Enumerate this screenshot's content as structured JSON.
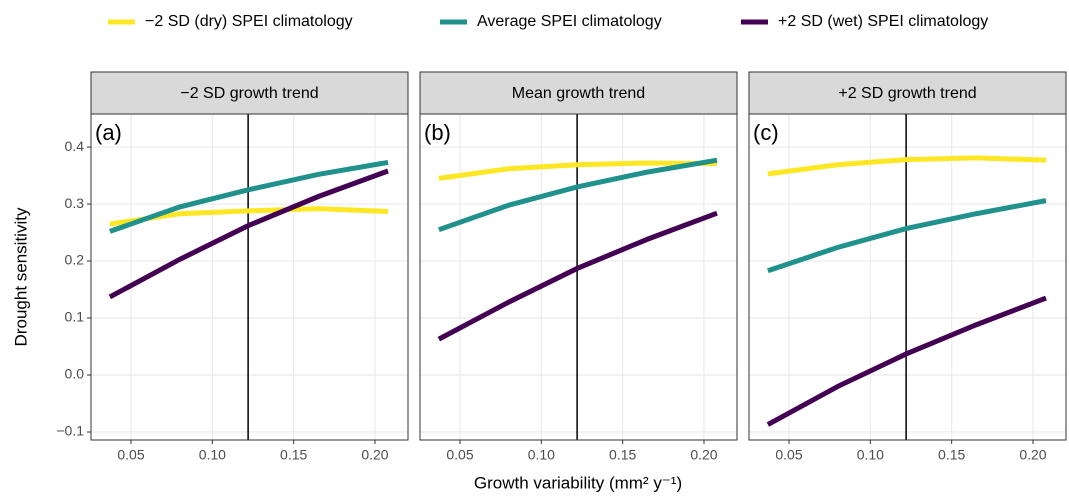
{
  "chart_data": {
    "type": "line",
    "ylabel": "Drought sensitivity",
    "xlabel": "Growth variability (mm² y⁻¹)",
    "series": [
      {
        "name": "−2 SD (dry) SPEI climatology",
        "color": "#fde725"
      },
      {
        "name": "Average SPEI climatology",
        "color": "#21918c"
      },
      {
        "name": "+2 SD (wet) SPEI climatology",
        "color": "#440154"
      }
    ],
    "x": [
      0.037,
      0.08,
      0.122,
      0.165,
      0.208
    ],
    "vline": 0.122,
    "xlim": [
      0.0254,
      0.2203
    ],
    "ylim": [
      -0.114,
      0.458
    ],
    "xticks": [
      0.05,
      {
        "value": 0.1,
        "label": "0.10"
      },
      0.15,
      {
        "value": 0.2,
        "label": "0.20"
      }
    ],
    "yticks": [
      {
        "value": -0.1,
        "label": "−0.1"
      },
      {
        "value": 0,
        "label": "0.0"
      },
      0.1,
      0.2,
      0.3,
      0.4
    ],
    "grid": true,
    "panels": [
      {
        "title": "−2 SD growth trend",
        "label": "(a)",
        "series": [
          {
            "values": [
              0.265,
              0.283,
              0.288,
              0.292,
              0.287
            ]
          },
          {
            "values": [
              0.252,
              0.295,
              0.325,
              0.352,
              0.373
            ]
          },
          {
            "values": [
              0.137,
              0.203,
              0.262,
              0.313,
              0.358
            ]
          }
        ]
      },
      {
        "title": "Mean growth trend",
        "label": "(b)",
        "series": [
          {
            "values": [
              0.345,
              0.362,
              0.369,
              0.372,
              0.371
            ]
          },
          {
            "values": [
              0.255,
              0.298,
              0.33,
              0.356,
              0.377
            ]
          },
          {
            "values": [
              0.063,
              0.128,
              0.187,
              0.238,
              0.284
            ]
          }
        ]
      },
      {
        "title": "+2 SD growth trend",
        "label": "(c)",
        "series": [
          {
            "values": [
              0.353,
              0.369,
              0.378,
              0.381,
              0.377
            ]
          },
          {
            "values": [
              0.183,
              0.224,
              0.257,
              0.283,
              0.306
            ]
          },
          {
            "values": [
              -0.087,
              -0.02,
              0.037,
              0.088,
              0.135
            ]
          }
        ]
      }
    ]
  }
}
